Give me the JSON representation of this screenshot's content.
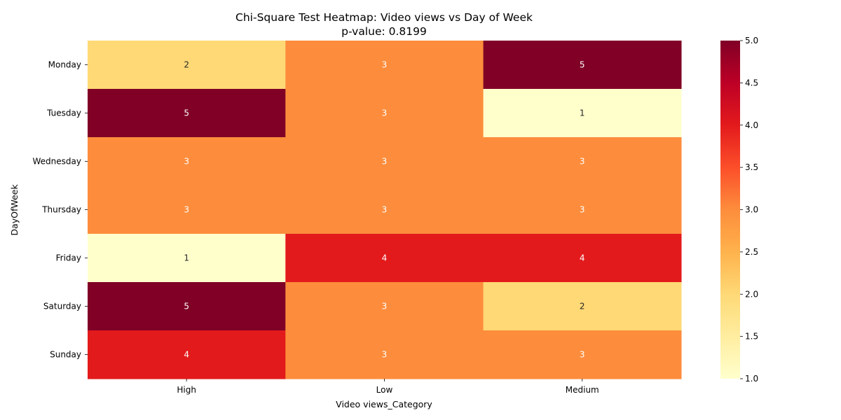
{
  "chart_data": {
    "type": "heatmap",
    "title": "Chi-Square Test Heatmap: Video views vs Day of Week",
    "subtitle": "p-value: 0.8199",
    "xlabel": "Video views_Category",
    "ylabel": "DayOfWeek",
    "x_categories": [
      "High",
      "Low",
      "Medium"
    ],
    "y_categories": [
      "Monday",
      "Tuesday",
      "Wednesday",
      "Thursday",
      "Friday",
      "Saturday",
      "Sunday"
    ],
    "values": [
      [
        2,
        3,
        5
      ],
      [
        5,
        3,
        1
      ],
      [
        3,
        3,
        3
      ],
      [
        3,
        3,
        3
      ],
      [
        1,
        4,
        4
      ],
      [
        5,
        3,
        2
      ],
      [
        4,
        3,
        3
      ]
    ],
    "colorbar": {
      "colormap": "YlOrRd",
      "range": [
        1,
        5
      ],
      "ticks": [
        "1.0",
        "1.5",
        "2.0",
        "2.5",
        "3.0",
        "3.5",
        "4.0",
        "4.5",
        "5.0"
      ]
    }
  }
}
